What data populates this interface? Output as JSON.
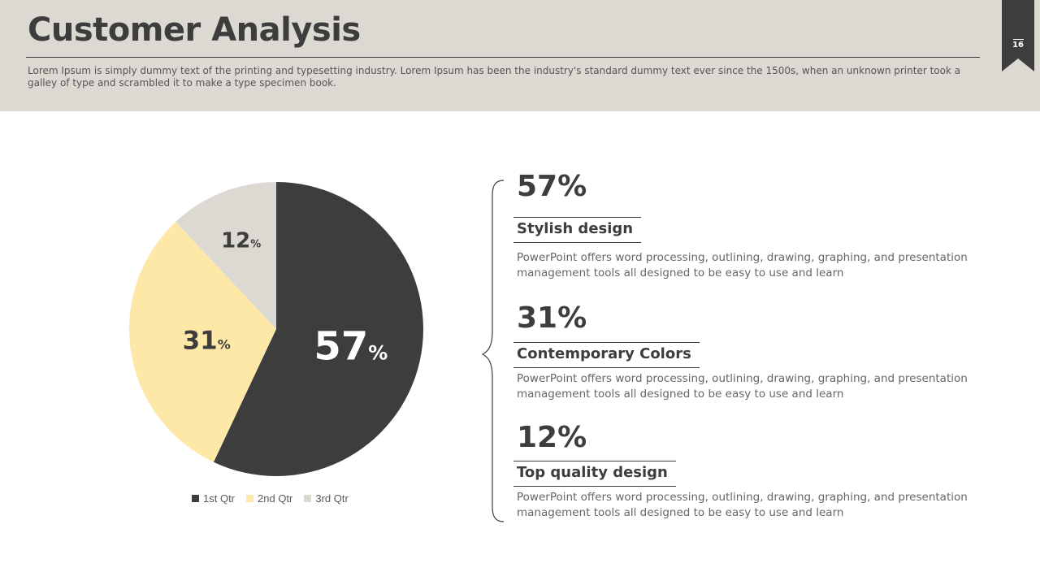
{
  "header": {
    "title": "Customer Analysis",
    "subtitle": "Lorem Ipsum is simply dummy text of the printing and typesetting industry. Lorem Ipsum has been the industry's standard dummy text ever since the 1500s, when an unknown printer took a galley of type and scrambled it to make a type specimen book.",
    "page_number": "16"
  },
  "colors": {
    "dark": "#3d3d3d",
    "yellow": "#fde8a8",
    "light": "#dcd9d3",
    "header_bg": "#dcd9d3"
  },
  "chart_data": {
    "type": "pie",
    "categories": [
      "1st Qtr",
      "2nd Qtr",
      "3rd Qtr"
    ],
    "values": [
      57,
      31,
      12
    ],
    "labels": [
      "57",
      "31",
      "12"
    ],
    "unit": "%",
    "colors": [
      "#3d3d3d",
      "#fde8a8",
      "#dcd9d3"
    ],
    "legend_position": "bottom"
  },
  "stats": [
    {
      "value": "57%",
      "label": "Stylish design",
      "description": "PowerPoint offers word processing, outlining, drawing, graphing, and presentation management tools all designed to be easy to use and learn"
    },
    {
      "value": "31%",
      "label": "Contemporary Colors",
      "description": "PowerPoint offers word processing, outlining, drawing, graphing, and presentation management tools all designed to be easy to use and learn"
    },
    {
      "value": "12%",
      "label": "Top quality design",
      "description": "PowerPoint offers word processing, outlining, drawing, graphing, and presentation management tools all designed to be easy to use and learn"
    }
  ]
}
